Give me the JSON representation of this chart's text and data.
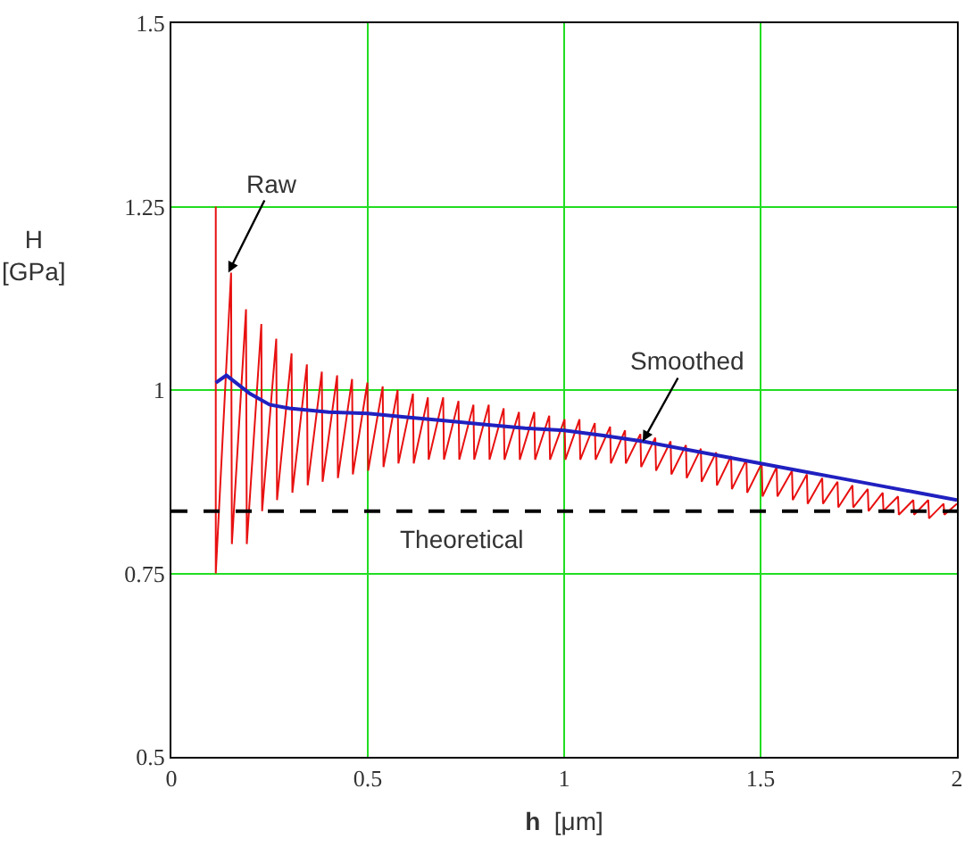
{
  "chart_data": {
    "type": "line",
    "xlabel": "h  [μm]",
    "ylabel": "H\n[GPa]",
    "xlim": [
      0,
      2
    ],
    "xticks": [
      0,
      0.5,
      1,
      1.5,
      2
    ],
    "ylim": [
      0.5,
      1.5
    ],
    "yticks": [
      0.5,
      0.75,
      1,
      1.25,
      1.5
    ],
    "grid": true,
    "series": [
      {
        "color": "#e81010",
        "x": [
          0.113,
          0.113,
          0.152,
          0.154,
          0.19,
          0.192,
          0.229,
          0.231,
          0.267,
          0.269,
          0.306,
          0.308,
          0.345,
          0.347,
          0.383,
          0.385,
          0.422,
          0.424,
          0.46,
          0.462,
          0.499,
          0.501,
          0.538,
          0.54,
          0.576,
          0.578,
          0.615,
          0.617,
          0.653,
          0.655,
          0.692,
          0.694,
          0.731,
          0.733,
          0.769,
          0.771,
          0.808,
          0.81,
          0.846,
          0.848,
          0.885,
          0.887,
          0.924,
          0.926,
          0.962,
          0.964,
          1.001,
          1.003,
          1.039,
          1.041,
          1.078,
          1.08,
          1.117,
          1.119,
          1.155,
          1.157,
          1.194,
          1.196,
          1.232,
          1.234,
          1.271,
          1.273,
          1.31,
          1.312,
          1.348,
          1.35,
          1.387,
          1.389,
          1.425,
          1.427,
          1.464,
          1.466,
          1.503,
          1.505,
          1.541,
          1.543,
          1.58,
          1.582,
          1.618,
          1.62,
          1.657,
          1.659,
          1.696,
          1.698,
          1.734,
          1.736,
          1.773,
          1.775,
          1.811,
          1.813,
          1.85,
          1.852,
          1.889,
          1.891,
          1.927,
          1.929,
          1.966,
          1.968,
          2.0
        ],
        "values": [
          1.25,
          0.75,
          1.16,
          0.79,
          1.11,
          0.79,
          1.09,
          0.835,
          1.07,
          0.85,
          1.05,
          0.86,
          1.035,
          0.87,
          1.025,
          0.875,
          1.02,
          0.88,
          1.015,
          0.885,
          1.01,
          0.89,
          1.005,
          0.895,
          1.0,
          0.9,
          0.995,
          0.9,
          0.99,
          0.905,
          0.99,
          0.905,
          0.985,
          0.905,
          0.98,
          0.905,
          0.98,
          0.905,
          0.975,
          0.905,
          0.97,
          0.905,
          0.97,
          0.905,
          0.965,
          0.905,
          0.96,
          0.905,
          0.96,
          0.905,
          0.955,
          0.905,
          0.95,
          0.9,
          0.945,
          0.9,
          0.94,
          0.895,
          0.935,
          0.89,
          0.93,
          0.885,
          0.925,
          0.88,
          0.92,
          0.875,
          0.915,
          0.87,
          0.91,
          0.865,
          0.905,
          0.86,
          0.9,
          0.855,
          0.895,
          0.855,
          0.89,
          0.85,
          0.885,
          0.845,
          0.88,
          0.845,
          0.875,
          0.84,
          0.87,
          0.84,
          0.865,
          0.835,
          0.86,
          0.835,
          0.855,
          0.83,
          0.85,
          0.83,
          0.85,
          0.825,
          0.845,
          0.83,
          0.845
        ]
      },
      {
        "color": "#2020c0",
        "x": [
          0.113,
          0.14,
          0.2,
          0.25,
          0.3,
          0.4,
          0.5,
          0.6,
          0.7,
          0.8,
          0.9,
          1.0,
          1.1,
          1.2,
          1.3,
          1.4,
          1.5,
          1.6,
          1.7,
          1.8,
          1.9,
          2.0
        ],
        "values": [
          1.01,
          1.02,
          0.995,
          0.98,
          0.975,
          0.97,
          0.968,
          0.963,
          0.958,
          0.953,
          0.948,
          0.945,
          0.938,
          0.93,
          0.92,
          0.91,
          0.9,
          0.89,
          0.88,
          0.87,
          0.86,
          0.85
        ]
      }
    ],
    "ref_lines": [
      {
        "axis": "y",
        "value": 0.835,
        "label": "Theoretical",
        "color": "#000000",
        "line_style": "dashed"
      }
    ],
    "annotations": [
      {
        "text": "Raw",
        "x": 0.145,
        "y": 1.16
      },
      {
        "text": "Smoothed",
        "x": 1.2,
        "y": 0.93
      }
    ]
  }
}
